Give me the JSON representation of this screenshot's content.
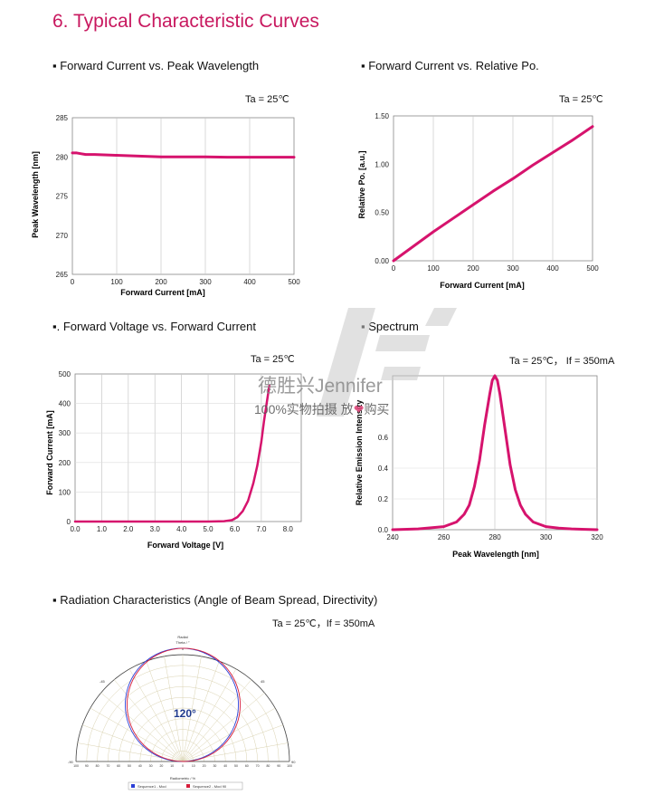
{
  "page": {
    "title": "6. Typical Characteristic Curves",
    "watermark_line1": "德胜兴Jennifer",
    "watermark_line2a": "100%实物拍摄  放",
    "watermark_line2b": "购买",
    "heart_icon": "heart-icon",
    "accent_color": "#c8185f",
    "curve_color": "#d6136d"
  },
  "sections": {
    "s1": "▪ Forward Current vs. Peak Wavelength",
    "s2": "▪ Forward Current vs. Relative Po.",
    "s3": "▪. Forward Voltage vs. Forward Current",
    "s4": "▪ Spectrum",
    "s5": "▪ Radiation Characteristics (Angle of Beam Spread, Directivity)"
  },
  "conditions": {
    "c1": "Ta = 25℃",
    "c2": "Ta = 25℃",
    "c3": "Ta = 25℃",
    "c4": "Ta = 25℃， If = 350mA",
    "c5": "Ta = 25℃，If = 350mA"
  },
  "chart_data": [
    {
      "id": "wavelength",
      "type": "line",
      "xlabel": "Forward Current [mA]",
      "ylabel": "Peak Wavelength [nm]",
      "xlim": [
        0,
        500
      ],
      "ylim": [
        265,
        285
      ],
      "xticks": [
        0,
        100,
        200,
        300,
        400,
        500
      ],
      "yticks": [
        265,
        270,
        275,
        280,
        285
      ],
      "x": [
        0,
        10,
        20,
        30,
        50,
        100,
        150,
        200,
        250,
        300,
        350,
        400,
        450,
        500
      ],
      "y": [
        280.5,
        280.5,
        280.4,
        280.3,
        280.3,
        280.2,
        280.1,
        280.0,
        280.0,
        280.0,
        279.95,
        279.95,
        279.95,
        279.95
      ]
    },
    {
      "id": "relpo",
      "type": "line",
      "xlabel": "Forward Current [mA]",
      "ylabel": "Relative Po. [a.u.]",
      "xlim": [
        0,
        500
      ],
      "ylim": [
        0,
        1.5
      ],
      "xticks": [
        0,
        100,
        200,
        300,
        400,
        500
      ],
      "yticks": [
        0.0,
        0.5,
        1.0,
        1.5
      ],
      "x": [
        0,
        50,
        100,
        150,
        200,
        250,
        300,
        350,
        400,
        450,
        500
      ],
      "y": [
        0.0,
        0.15,
        0.3,
        0.44,
        0.58,
        0.72,
        0.85,
        0.99,
        1.12,
        1.25,
        1.39
      ]
    },
    {
      "id": "iv",
      "type": "line",
      "xlabel": "Forward Voltage [V]",
      "ylabel": "Forward Current [mA]",
      "xlim": [
        0,
        8.5
      ],
      "ylim": [
        0,
        500
      ],
      "xticks": [
        0.0,
        1.0,
        2.0,
        3.0,
        4.0,
        5.0,
        6.0,
        7.0,
        8.0
      ],
      "yticks": [
        0,
        100,
        200,
        300,
        400,
        500
      ],
      "x": [
        0,
        5.0,
        5.6,
        5.9,
        6.1,
        6.3,
        6.5,
        6.7,
        6.85,
        7.0,
        7.1,
        7.2,
        7.3
      ],
      "y": [
        0,
        0,
        1,
        5,
        15,
        35,
        70,
        130,
        190,
        270,
        340,
        400,
        460
      ]
    },
    {
      "id": "spectrum",
      "type": "line",
      "xlabel": "Peak Wavelength [nm]",
      "ylabel": "Relative Emission Intensity",
      "xlim": [
        240,
        320
      ],
      "ylim": [
        0,
        1.0
      ],
      "xticks": [
        240,
        260,
        280,
        300,
        320
      ],
      "yticks": [
        0.0,
        0.2,
        0.4,
        0.6
      ],
      "x": [
        240,
        250,
        260,
        265,
        268,
        270,
        272,
        274,
        276,
        278,
        279,
        280,
        281,
        282,
        284,
        286,
        288,
        290,
        292,
        295,
        300,
        305,
        310,
        320
      ],
      "y": [
        0.0,
        0.005,
        0.02,
        0.05,
        0.1,
        0.16,
        0.28,
        0.45,
        0.68,
        0.88,
        0.97,
        1.0,
        0.97,
        0.88,
        0.65,
        0.42,
        0.26,
        0.16,
        0.1,
        0.05,
        0.02,
        0.01,
        0.005,
        0.0
      ]
    },
    {
      "id": "radiation",
      "type": "polar",
      "top_label": "Radial",
      "top_sublabel": "Theta / °",
      "zero_label": "0",
      "bottom_label": "Radiometric / %",
      "angle_labels": [
        "-90",
        "-45",
        "45",
        "90"
      ],
      "radial_ticks": [
        "100",
        "90",
        "80",
        "70",
        "60",
        "50",
        "40",
        "30",
        "20",
        "10",
        "0",
        "10",
        "20",
        "30",
        "40",
        "50",
        "60",
        "70",
        "80",
        "90",
        "100"
      ],
      "beam_angle": "120°",
      "legend": [
        "Sequence1 - Mod",
        "Sequence2 - Mod 90"
      ]
    }
  ]
}
